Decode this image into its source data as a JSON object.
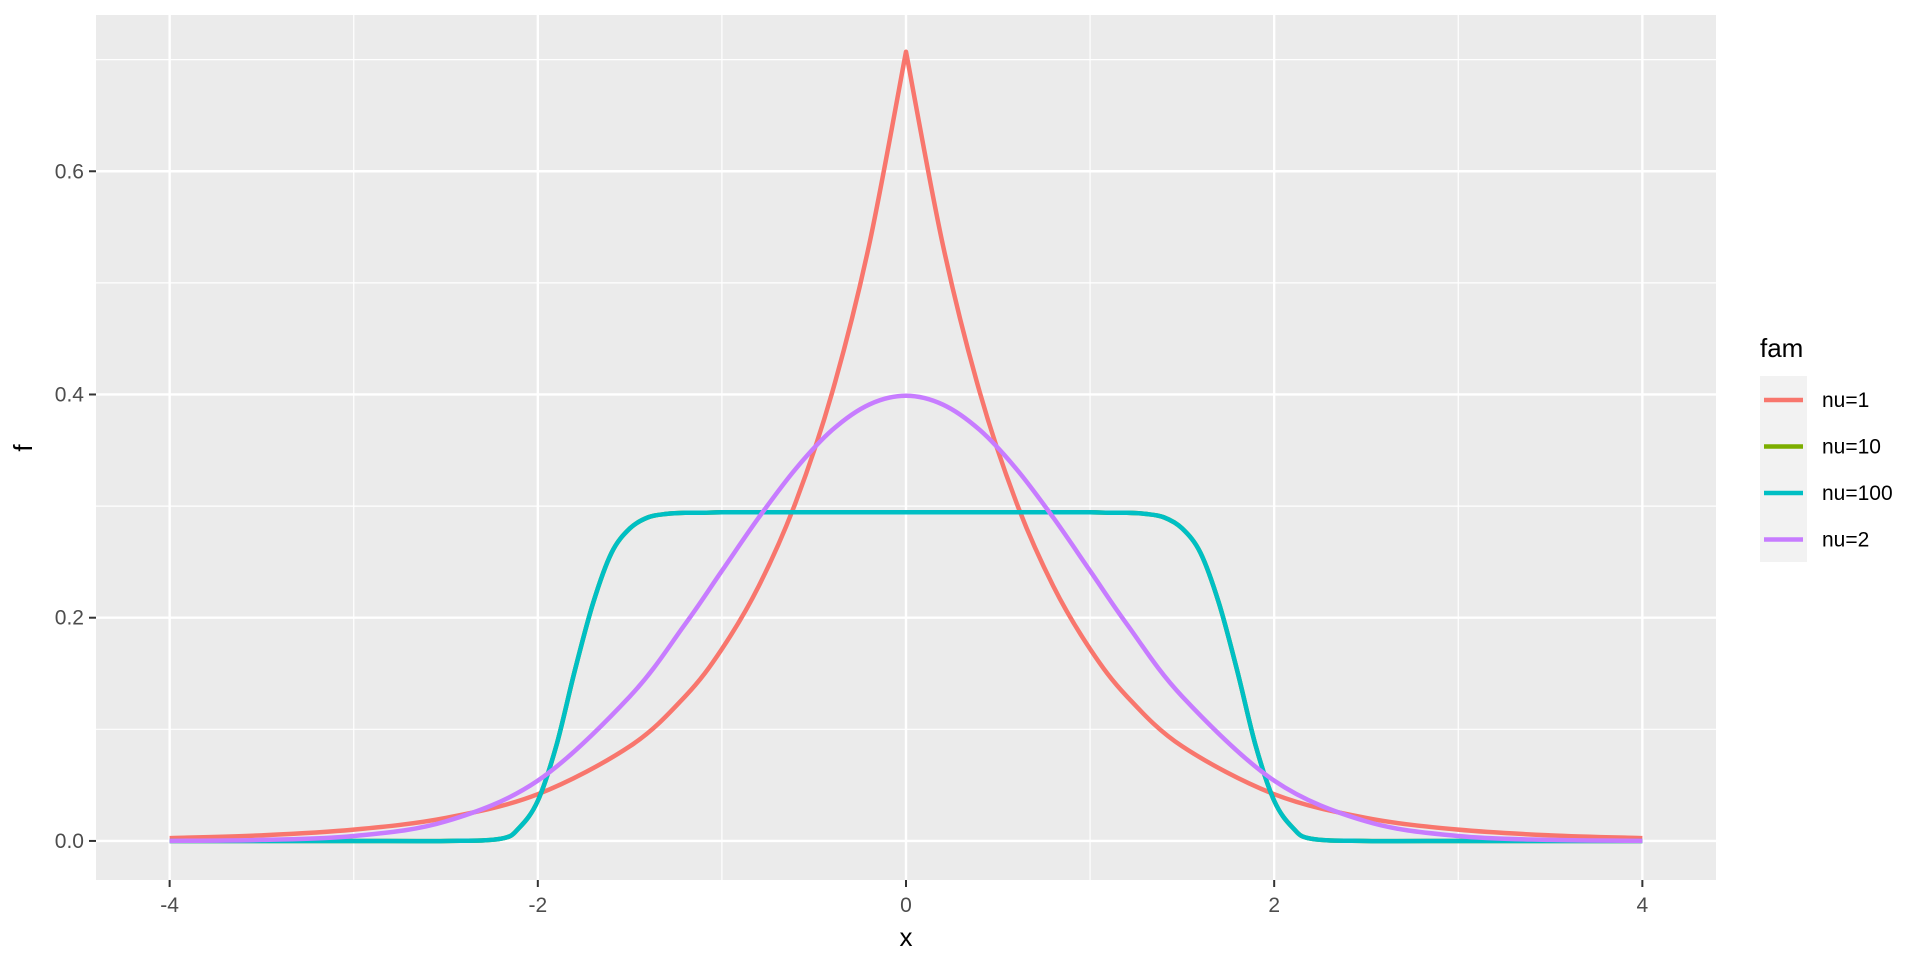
{
  "chart_data": {
    "type": "line",
    "title": "",
    "xlabel": "x",
    "ylabel": "f",
    "xlim": [
      -4.4,
      4.4
    ],
    "ylim": [
      -0.035,
      0.74
    ],
    "x_ticks": [
      -4,
      -2,
      0,
      2,
      4
    ],
    "x_tick_labels": [
      "-4",
      "-2",
      "0",
      "2",
      "4"
    ],
    "y_ticks": [
      0.0,
      0.2,
      0.4,
      0.6
    ],
    "y_tick_labels": [
      "0.0",
      "0.2",
      "0.4",
      "0.6"
    ],
    "grid": true,
    "legend": {
      "title": "fam",
      "placement": "right"
    },
    "series": [
      {
        "name": "nu=1",
        "color": "#F8766D",
        "x": [
          -4,
          -3.5,
          -3,
          -2.5,
          -2,
          -1.5,
          -1.2,
          -1,
          -0.8,
          -0.6,
          -0.4,
          -0.2,
          0,
          0.2,
          0.4,
          0.6,
          0.8,
          1,
          1.2,
          1.5,
          2,
          2.5,
          3,
          3.5,
          4
        ],
        "y": [
          0.0025,
          0.005,
          0.0101,
          0.0206,
          0.0419,
          0.0848,
          0.1295,
          0.172,
          0.2283,
          0.3031,
          0.4024,
          0.5342,
          0.7071,
          0.5342,
          0.4024,
          0.3031,
          0.2283,
          0.172,
          0.1295,
          0.0848,
          0.0419,
          0.0206,
          0.0101,
          0.005,
          0.0025
        ]
      },
      {
        "name": "nu=10",
        "color": "#7CAE00",
        "x": [
          -4,
          -3.5,
          -3,
          -2.5,
          -2.2,
          -2.1,
          -2.0,
          -1.9,
          -1.8,
          -1.7,
          -1.6,
          -1.5,
          -1.4,
          -1.3,
          -1.2,
          -1.1,
          -1.0,
          -0.8,
          -0.5,
          0,
          0.5,
          0.8,
          1.0,
          1.1,
          1.2,
          1.3,
          1.4,
          1.5,
          1.6,
          1.7,
          1.8,
          1.9,
          2.0,
          2.1,
          2.2,
          2.5,
          3,
          3.5,
          4
        ],
        "y": [
          0.0,
          0.0,
          0.0,
          0.0,
          0.002,
          0.012,
          0.036,
          0.085,
          0.152,
          0.213,
          0.258,
          0.28,
          0.29,
          0.293,
          0.294,
          0.294,
          0.2945,
          0.2945,
          0.2945,
          0.2945,
          0.2945,
          0.2945,
          0.2945,
          0.294,
          0.294,
          0.293,
          0.29,
          0.28,
          0.258,
          0.213,
          0.152,
          0.085,
          0.036,
          0.012,
          0.002,
          0.0,
          0.0,
          0.0,
          0.0
        ]
      },
      {
        "name": "nu=100",
        "color": "#00BFC4",
        "x": [
          -4,
          -3.5,
          -3,
          -2.5,
          -2.2,
          -2.1,
          -2.0,
          -1.9,
          -1.8,
          -1.7,
          -1.6,
          -1.5,
          -1.4,
          -1.3,
          -1.2,
          -1.1,
          -1.0,
          -0.8,
          -0.5,
          0,
          0.5,
          0.8,
          1.0,
          1.1,
          1.2,
          1.3,
          1.4,
          1.5,
          1.6,
          1.7,
          1.8,
          1.9,
          2.0,
          2.1,
          2.2,
          2.5,
          3,
          3.5,
          4
        ],
        "y": [
          0.0,
          0.0,
          0.0,
          0.0,
          0.002,
          0.012,
          0.036,
          0.085,
          0.152,
          0.213,
          0.258,
          0.28,
          0.29,
          0.293,
          0.294,
          0.294,
          0.2945,
          0.2945,
          0.2945,
          0.2945,
          0.2945,
          0.2945,
          0.2945,
          0.294,
          0.294,
          0.293,
          0.29,
          0.28,
          0.258,
          0.213,
          0.152,
          0.085,
          0.036,
          0.012,
          0.002,
          0.0,
          0.0,
          0.0,
          0.0
        ]
      },
      {
        "name": "nu=2",
        "color": "#C77CFF",
        "x": [
          -4,
          -3.5,
          -3,
          -2.5,
          -2,
          -1.5,
          -1.2,
          -1,
          -0.8,
          -0.6,
          -0.4,
          -0.2,
          0,
          0.2,
          0.4,
          0.6,
          0.8,
          1,
          1.2,
          1.5,
          2,
          2.5,
          3,
          3.5,
          4
        ],
        "y": [
          0.0001,
          0.0009,
          0.0044,
          0.0175,
          0.054,
          0.1295,
          0.1942,
          0.242,
          0.2897,
          0.3332,
          0.3683,
          0.391,
          0.3989,
          0.391,
          0.3683,
          0.3332,
          0.2897,
          0.242,
          0.1942,
          0.1295,
          0.054,
          0.0175,
          0.0044,
          0.0009,
          0.0001
        ]
      }
    ]
  }
}
